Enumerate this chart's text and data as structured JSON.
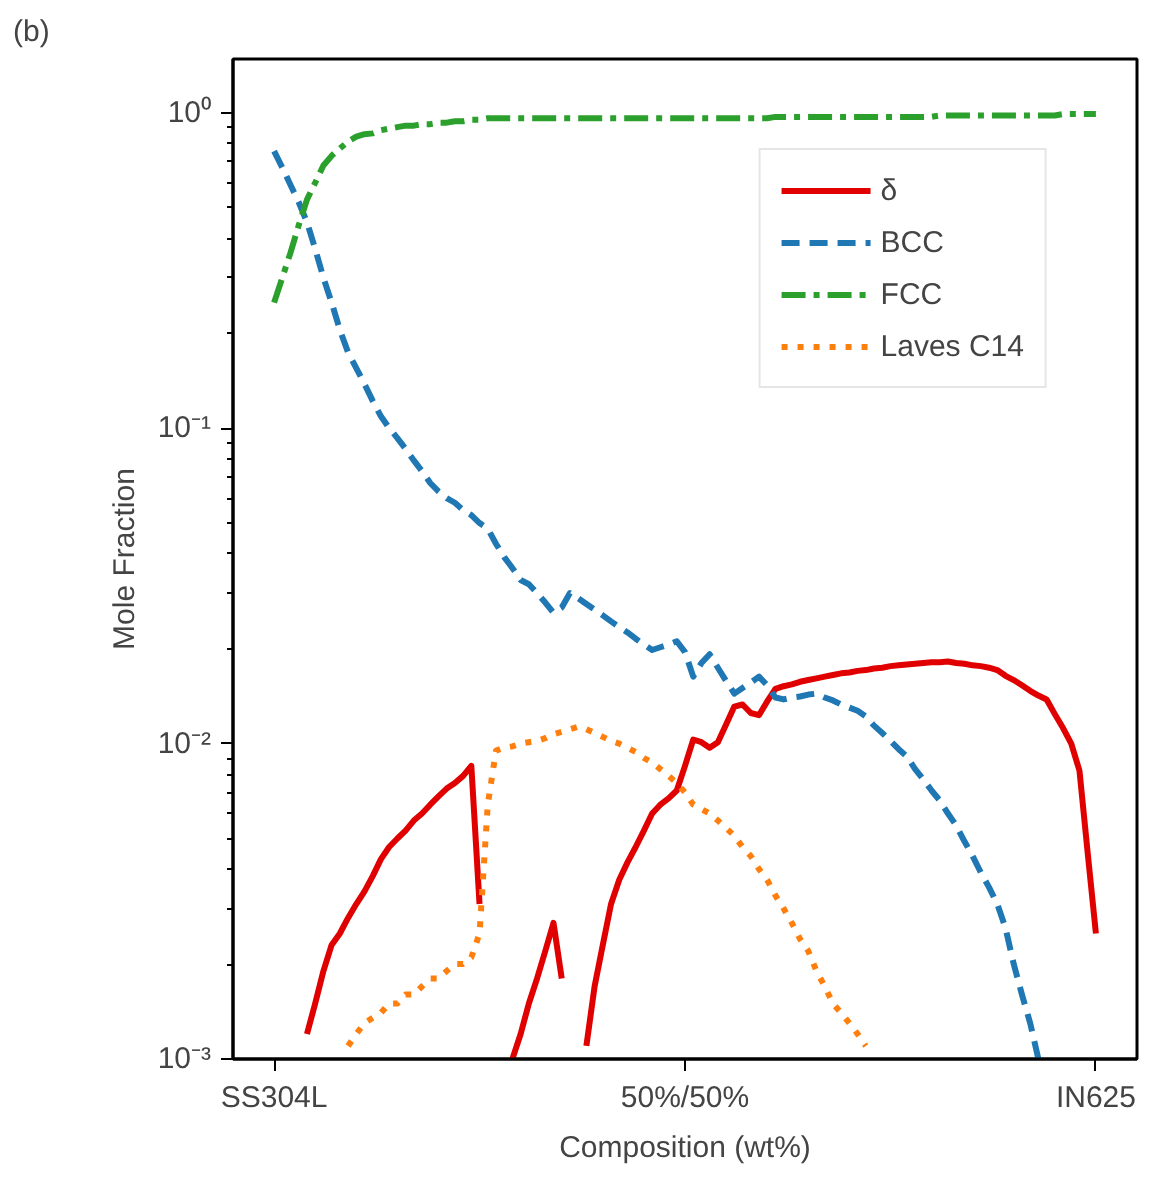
{
  "chart_data": {
    "type": "line",
    "annotations": [
      "(b)"
    ],
    "xlabel": "Composition (wt%)",
    "ylabel": "Mole Fraction",
    "categories": [
      "SS304L",
      null,
      null,
      null,
      null,
      null,
      null,
      null,
      null,
      null,
      null,
      null,
      null,
      null,
      null,
      null,
      null,
      null,
      null,
      null,
      null,
      null,
      null,
      null,
      null,
      null,
      null,
      null,
      null,
      null,
      null,
      null,
      null,
      null,
      null,
      null,
      null,
      null,
      null,
      null,
      null,
      null,
      null,
      null,
      null,
      null,
      null,
      null,
      null,
      null,
      "50%/50%",
      null,
      null,
      null,
      null,
      null,
      null,
      null,
      null,
      null,
      null,
      null,
      null,
      null,
      null,
      null,
      null,
      null,
      null,
      null,
      null,
      null,
      null,
      null,
      null,
      null,
      null,
      null,
      null,
      null,
      null,
      null,
      null,
      null,
      null,
      null,
      null,
      null,
      null,
      null,
      null,
      null,
      null,
      null,
      null,
      null,
      null,
      null,
      null,
      null,
      "IN625"
    ],
    "ylim": [
      0.001,
      1.48
    ],
    "yticks": [
      {
        "value": 0.001,
        "label": "10⁻³"
      },
      {
        "value": 0.01,
        "label": "10⁻²"
      },
      {
        "value": 0.1,
        "label": "10⁻¹"
      },
      {
        "value": 1,
        "label": "10⁰"
      }
    ],
    "log": "y",
    "grid": false,
    "legend": "top right",
    "series": [
      {
        "name": "δ",
        "color": "#e00000",
        "line_style": "solid",
        "values": [
          null,
          null,
          null,
          null,
          0.0012,
          0.0015,
          0.0019,
          0.0023,
          0.0025,
          0.0028,
          0.0031,
          0.0034,
          0.0038,
          0.0043,
          0.0047,
          0.005,
          0.0053,
          0.0057,
          0.006,
          0.0064,
          0.0068,
          0.0072,
          0.0075,
          0.0079,
          0.0085,
          0.0031,
          null,
          null,
          null,
          0.001,
          0.0012,
          0.0015,
          0.0018,
          0.0022,
          0.0027,
          0.0018,
          null,
          null,
          0.0011,
          0.0017,
          0.0023,
          0.0031,
          0.0037,
          0.0042,
          0.0047,
          0.0053,
          0.006,
          0.0064,
          0.0067,
          0.0071,
          0.0085,
          0.0103,
          0.0101,
          0.0097,
          0.0101,
          0.0115,
          0.0131,
          0.0133,
          0.0125,
          0.0123,
          0.0136,
          0.0149,
          0.0152,
          0.0154,
          0.0157,
          0.0159,
          0.0161,
          0.0163,
          0.0165,
          0.0167,
          0.0168,
          0.017,
          0.0171,
          0.0173,
          0.0174,
          0.0176,
          0.0177,
          0.0178,
          0.0179,
          0.018,
          0.0181,
          0.0181,
          0.0182,
          0.018,
          0.0179,
          0.0177,
          0.0176,
          0.0174,
          0.0171,
          0.0164,
          0.0159,
          0.0153,
          0.0147,
          0.0142,
          0.0138,
          0.0124,
          0.0112,
          0.01,
          0.0082,
          0.0045,
          0.0025
        ]
      },
      {
        "name": "BCC",
        "color": "#1f77b4",
        "line_style": "dashed",
        "values": [
          0.755,
          0.67,
          0.59,
          0.52,
          0.45,
          0.37,
          0.3,
          0.25,
          0.205,
          0.174,
          0.155,
          0.138,
          0.122,
          0.109,
          0.1,
          0.093,
          0.086,
          0.079,
          0.073,
          0.067,
          0.063,
          0.06,
          0.058,
          0.055,
          0.053,
          0.05,
          0.048,
          0.043,
          0.039,
          0.036,
          0.033,
          0.032,
          0.03,
          0.028,
          0.026,
          0.027,
          0.03,
          0.0289,
          0.0277,
          0.0266,
          0.0255,
          0.0244,
          0.0234,
          0.0225,
          0.0215,
          0.0206,
          0.0198,
          0.0202,
          0.0206,
          0.0211,
          0.0195,
          0.0163,
          0.018,
          0.0192,
          0.0174,
          0.0158,
          0.0144,
          0.015,
          0.0156,
          0.0163,
          0.0153,
          0.014,
          0.0138,
          0.014,
          0.0141,
          0.0143,
          0.0144,
          0.014,
          0.0137,
          0.0133,
          0.013,
          0.0127,
          0.0122,
          0.0114,
          0.0108,
          0.0102,
          0.0096,
          0.0091,
          0.0083,
          0.0077,
          0.0071,
          0.0066,
          0.006,
          0.0055,
          0.0049,
          0.0044,
          0.0039,
          0.0035,
          0.0031,
          0.0026,
          0.002,
          0.0016,
          0.0013,
          0.001,
          null,
          null,
          null,
          null,
          null,
          null,
          null
        ]
      },
      {
        "name": "FCC",
        "color": "#2ca02c",
        "line_style": "dashdot",
        "values": [
          0.25,
          0.3,
          0.36,
          0.44,
          0.53,
          0.6,
          0.68,
          0.73,
          0.77,
          0.81,
          0.84,
          0.855,
          0.86,
          0.88,
          0.89,
          0.9,
          0.91,
          0.91,
          0.92,
          0.92,
          0.93,
          0.93,
          0.94,
          0.94,
          0.95,
          0.95,
          0.96,
          0.96,
          0.96,
          0.96,
          0.96,
          0.96,
          0.96,
          0.96,
          0.96,
          0.96,
          0.96,
          0.96,
          0.96,
          0.96,
          0.96,
          0.96,
          0.96,
          0.96,
          0.96,
          0.96,
          0.96,
          0.96,
          0.96,
          0.96,
          0.96,
          0.96,
          0.96,
          0.96,
          0.96,
          0.96,
          0.96,
          0.96,
          0.96,
          0.96,
          0.96,
          0.97,
          0.97,
          0.97,
          0.97,
          0.97,
          0.97,
          0.97,
          0.97,
          0.97,
          0.97,
          0.97,
          0.97,
          0.97,
          0.97,
          0.97,
          0.97,
          0.97,
          0.97,
          0.97,
          0.97,
          0.98,
          0.98,
          0.98,
          0.98,
          0.98,
          0.98,
          0.98,
          0.98,
          0.98,
          0.98,
          0.98,
          0.98,
          0.98,
          0.98,
          0.98,
          0.99,
          0.99,
          0.99,
          0.99,
          0.99
        ]
      },
      {
        "name": "Laves C14",
        "color": "#ff7f0e",
        "line_style": "dotted",
        "values": [
          null,
          null,
          null,
          null,
          null,
          null,
          null,
          null,
          null,
          0.0011,
          0.0012,
          0.0013,
          0.00135,
          0.0014,
          0.0015,
          0.0015,
          0.0016,
          0.0016,
          0.0017,
          0.0018,
          0.0018,
          0.0019,
          0.002,
          0.002,
          0.0021,
          0.0025,
          0.0064,
          0.0095,
          0.0097,
          0.0098,
          0.01,
          0.0101,
          0.0102,
          0.0104,
          0.0107,
          0.0109,
          0.0111,
          0.0113,
          0.0111,
          0.0108,
          0.0105,
          0.0102,
          0.01,
          0.0097,
          0.0094,
          0.009,
          0.0087,
          0.0083,
          0.0079,
          0.0075,
          0.007,
          0.0064,
          0.0062,
          0.006,
          0.0057,
          0.0054,
          0.0051,
          0.0047,
          0.0044,
          0.004,
          0.0037,
          0.0033,
          0.003,
          0.0027,
          0.0024,
          0.0022,
          0.0019,
          0.0017,
          0.0015,
          0.0014,
          0.0013,
          0.0012,
          0.0011,
          null,
          null,
          null,
          null,
          null,
          null,
          null,
          null,
          null,
          null,
          null,
          null,
          null,
          null,
          null,
          null,
          null,
          null,
          null,
          null,
          null,
          null,
          null,
          null,
          null,
          null,
          null,
          null
        ]
      }
    ]
  }
}
